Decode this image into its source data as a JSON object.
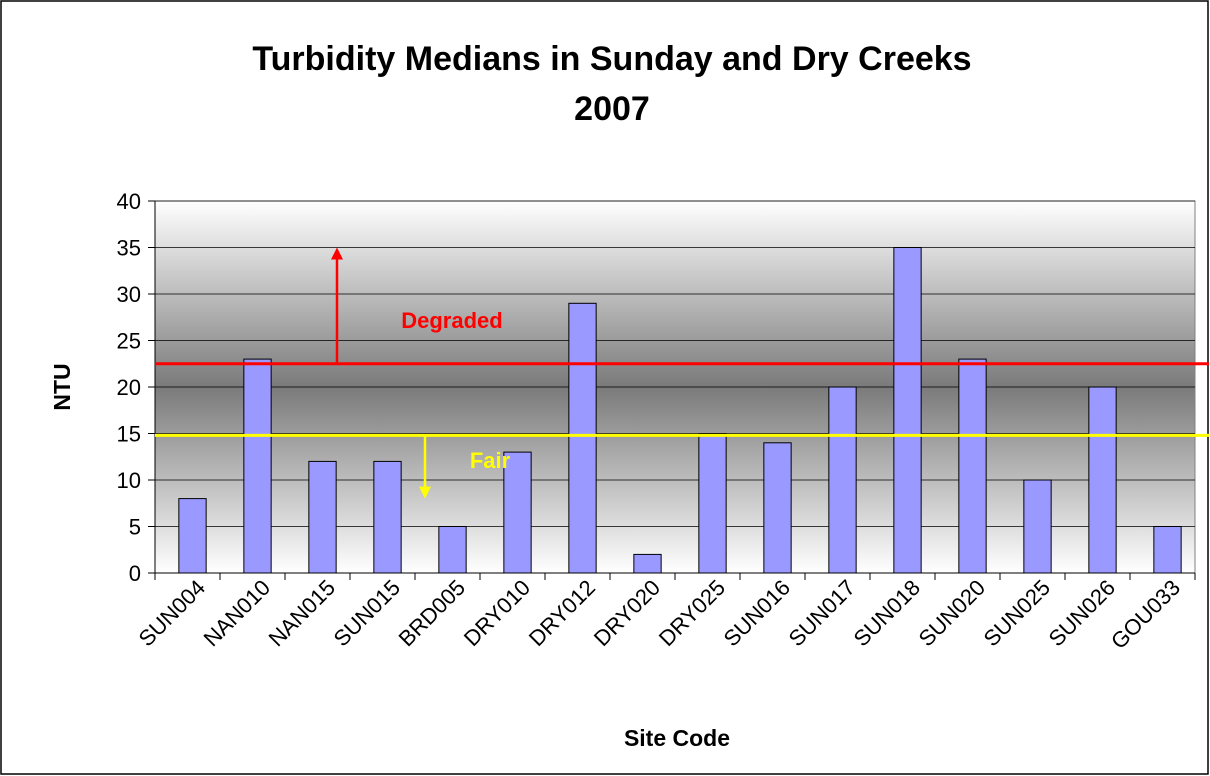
{
  "chart_data": {
    "type": "bar",
    "title": "Turbidity Medians in Sunday and Dry Creeks",
    "subtitle": "2007",
    "x_label": "Site Code",
    "y_label": "NTU",
    "categories": [
      "SUN004",
      "NAN010",
      "NAN015",
      "SUN015",
      "BRD005",
      "DRY010",
      "DRY012",
      "DRY020",
      "DRY025",
      "SUN016",
      "SUN017",
      "SUN018",
      "SUN020",
      "SUN025",
      "SUN026",
      "GOU033"
    ],
    "values": [
      8,
      23,
      12,
      12,
      5,
      13,
      29,
      2,
      15,
      14,
      20,
      35,
      23,
      10,
      20,
      5
    ],
    "color": "#9999ff",
    "ylim": [
      0,
      40
    ],
    "yticks": [
      0,
      5,
      10,
      15,
      20,
      25,
      30,
      35,
      40
    ],
    "grid": true,
    "reference_lines": [
      {
        "label": "Degraded",
        "value": 22.5,
        "color": "#ff0000",
        "arrow_to": 35
      },
      {
        "label": "Fair",
        "value": 14.8,
        "color": "#ffff00",
        "arrow_to": 8
      }
    ]
  }
}
